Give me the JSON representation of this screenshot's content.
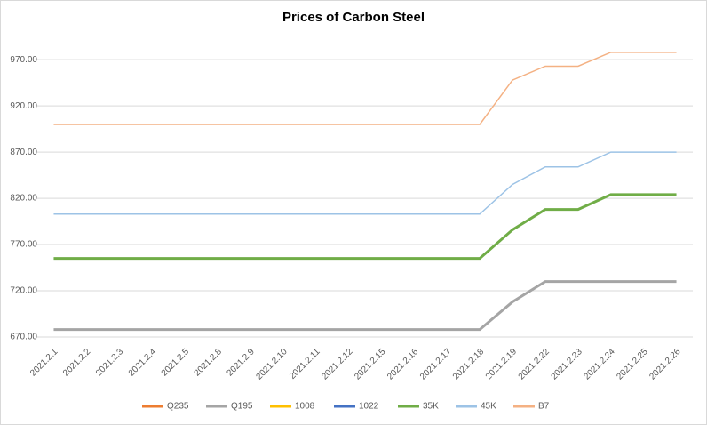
{
  "chart_data": {
    "type": "line",
    "title": "Prices of Carbon Steel",
    "categories": [
      "2021.2.1",
      "2021.2.2",
      "2021.2.3",
      "2021.2.4",
      "2021.2.5",
      "2021.2.8",
      "2021.2.9",
      "2021.2.10",
      "2021.2.11",
      "2021.2.12",
      "2021.2.15",
      "2021.2.16",
      "2021.2.17",
      "2021.2.18",
      "2021.2.19",
      "2021.2.22",
      "2021.2.23",
      "2021.2.24",
      "2021.2.25",
      "2021.2.26"
    ],
    "series": [
      {
        "name": "Q235",
        "color": "#ed7d31",
        "width": 3,
        "values": [
          null,
          null,
          null,
          null,
          null,
          null,
          null,
          null,
          null,
          null,
          null,
          null,
          null,
          null,
          null,
          null,
          null,
          null,
          null,
          null
        ]
      },
      {
        "name": "Q195",
        "color": "#a5a5a5",
        "width": 3,
        "values": [
          678,
          678,
          678,
          678,
          678,
          678,
          678,
          678,
          678,
          678,
          678,
          678,
          678,
          678,
          708,
          730,
          730,
          730,
          730,
          730
        ]
      },
      {
        "name": "1008",
        "color": "#ffc000",
        "width": 3,
        "values": [
          null,
          null,
          null,
          null,
          null,
          null,
          null,
          null,
          null,
          null,
          null,
          null,
          null,
          null,
          null,
          null,
          null,
          null,
          null,
          null
        ]
      },
      {
        "name": "1022",
        "color": "#4472c4",
        "width": 3,
        "values": [
          null,
          null,
          null,
          null,
          null,
          null,
          null,
          null,
          null,
          null,
          null,
          null,
          null,
          null,
          null,
          null,
          null,
          null,
          null,
          null
        ]
      },
      {
        "name": "35K",
        "color": "#70ad47",
        "width": 3,
        "values": [
          755,
          755,
          755,
          755,
          755,
          755,
          755,
          755,
          755,
          755,
          755,
          755,
          755,
          755,
          786,
          808,
          808,
          824,
          824,
          824
        ]
      },
      {
        "name": "45K",
        "color": "#9dc3e6",
        "width": 1.5,
        "values": [
          803,
          803,
          803,
          803,
          803,
          803,
          803,
          803,
          803,
          803,
          803,
          803,
          803,
          803,
          835,
          854,
          854,
          870,
          870,
          870
        ]
      },
      {
        "name": "B7",
        "color": "#f4b183",
        "width": 1.5,
        "values": [
          900,
          900,
          900,
          900,
          900,
          900,
          900,
          900,
          900,
          900,
          900,
          900,
          900,
          900,
          948,
          963,
          963,
          978,
          978,
          978
        ]
      }
    ],
    "ylim": [
      670,
      1000
    ],
    "yticks": [
      {
        "value": 670,
        "label": "670.00"
      },
      {
        "value": 720,
        "label": "720.00"
      },
      {
        "value": 770,
        "label": "770.00"
      },
      {
        "value": 820,
        "label": "820.00"
      },
      {
        "value": 870,
        "label": "870.00"
      },
      {
        "value": 920,
        "label": "920.00"
      },
      {
        "value": 970,
        "label": "970.00"
      }
    ],
    "grid": true,
    "legend": "bottom"
  }
}
